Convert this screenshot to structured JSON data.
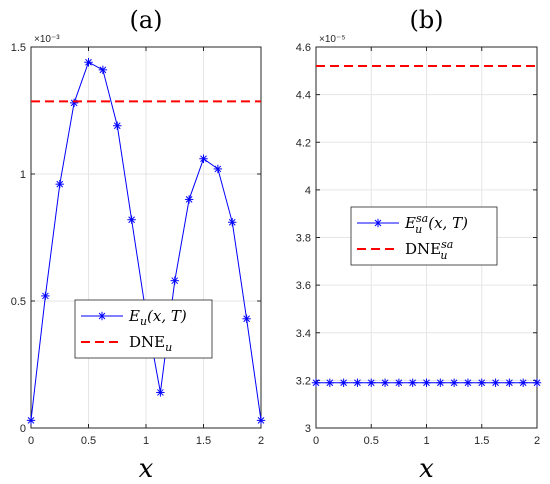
{
  "chart_data": [
    {
      "type": "line",
      "title": "(a)",
      "xlabel": "x",
      "exponent_label": "×10⁻³",
      "xlim": [
        0,
        2
      ],
      "ylim": [
        0,
        0.0015
      ],
      "xticks": [
        0,
        0.5,
        1,
        1.5,
        2
      ],
      "yticks": [
        0,
        0.0005,
        0.001,
        0.0015
      ],
      "xtick_labels": [
        "0",
        "0.5",
        "1",
        "1.5",
        "2"
      ],
      "ytick_labels": [
        "0",
        "0.5",
        "1",
        "1.5"
      ],
      "grid": true,
      "legend_position": "lower-right",
      "series": [
        {
          "name": "E_u(x,T)",
          "legend_main": "E",
          "legend_sub": "u",
          "legend_rest": "(x, T)",
          "color": "#0000ff",
          "style": "solid-star",
          "x": [
            0,
            0.125,
            0.25,
            0.375,
            0.5,
            0.625,
            0.75,
            0.875,
            1.0,
            1.125,
            1.25,
            1.375,
            1.5,
            1.625,
            1.75,
            1.875,
            2.0
          ],
          "y": [
            3e-05,
            0.00052,
            0.00096,
            0.00128,
            0.00144,
            0.00141,
            0.00119,
            0.00082,
            0.00045,
            0.00014,
            0.00058,
            0.0009,
            0.00106,
            0.00102,
            0.00081,
            0.00043,
            3e-05
          ]
        },
        {
          "name": "DNE_u",
          "legend_main": "DNE",
          "legend_sub": "u",
          "legend_sup": "",
          "color": "#ff0000",
          "style": "dashed",
          "x": [
            0,
            2
          ],
          "y": [
            0.001286,
            0.001286
          ]
        }
      ]
    },
    {
      "type": "line",
      "title": "(b)",
      "xlabel": "x",
      "exponent_label": "×10⁻⁵",
      "xlim": [
        0,
        2
      ],
      "ylim": [
        3e-05,
        4.6e-05
      ],
      "xticks": [
        0,
        0.5,
        1,
        1.5,
        2
      ],
      "yticks": [
        3e-05,
        3.2e-05,
        3.4e-05,
        3.6e-05,
        3.8e-05,
        4e-05,
        4.2e-05,
        4.4e-05,
        4.6e-05
      ],
      "xtick_labels": [
        "0",
        "0.5",
        "1",
        "1.5",
        "2"
      ],
      "ytick_labels": [
        "3",
        "3.2",
        "3.4",
        "3.6",
        "3.8",
        "4",
        "4.2",
        "4.4",
        "4.6"
      ],
      "grid": true,
      "legend_position": "center",
      "series": [
        {
          "name": "E_u^sa(x,T)",
          "legend_main": "E",
          "legend_sub": "u",
          "legend_sup": "sa",
          "legend_rest": "(x, T)",
          "color": "#0000ff",
          "style": "solid-star",
          "x": [
            0,
            0.125,
            0.25,
            0.375,
            0.5,
            0.625,
            0.75,
            0.875,
            1.0,
            1.125,
            1.25,
            1.375,
            1.5,
            1.625,
            1.75,
            1.875,
            2.0
          ],
          "y": [
            3.19e-05,
            3.19e-05,
            3.19e-05,
            3.19e-05,
            3.19e-05,
            3.19e-05,
            3.19e-05,
            3.19e-05,
            3.19e-05,
            3.19e-05,
            3.19e-05,
            3.19e-05,
            3.19e-05,
            3.19e-05,
            3.19e-05,
            3.19e-05,
            3.19e-05
          ]
        },
        {
          "name": "DNE_u^sa",
          "legend_main": "DNE",
          "legend_sub": "u",
          "legend_sup": "sa",
          "color": "#ff0000",
          "style": "dashed",
          "x": [
            0,
            2
          ],
          "y": [
            4.52e-05,
            4.52e-05
          ]
        }
      ]
    }
  ]
}
